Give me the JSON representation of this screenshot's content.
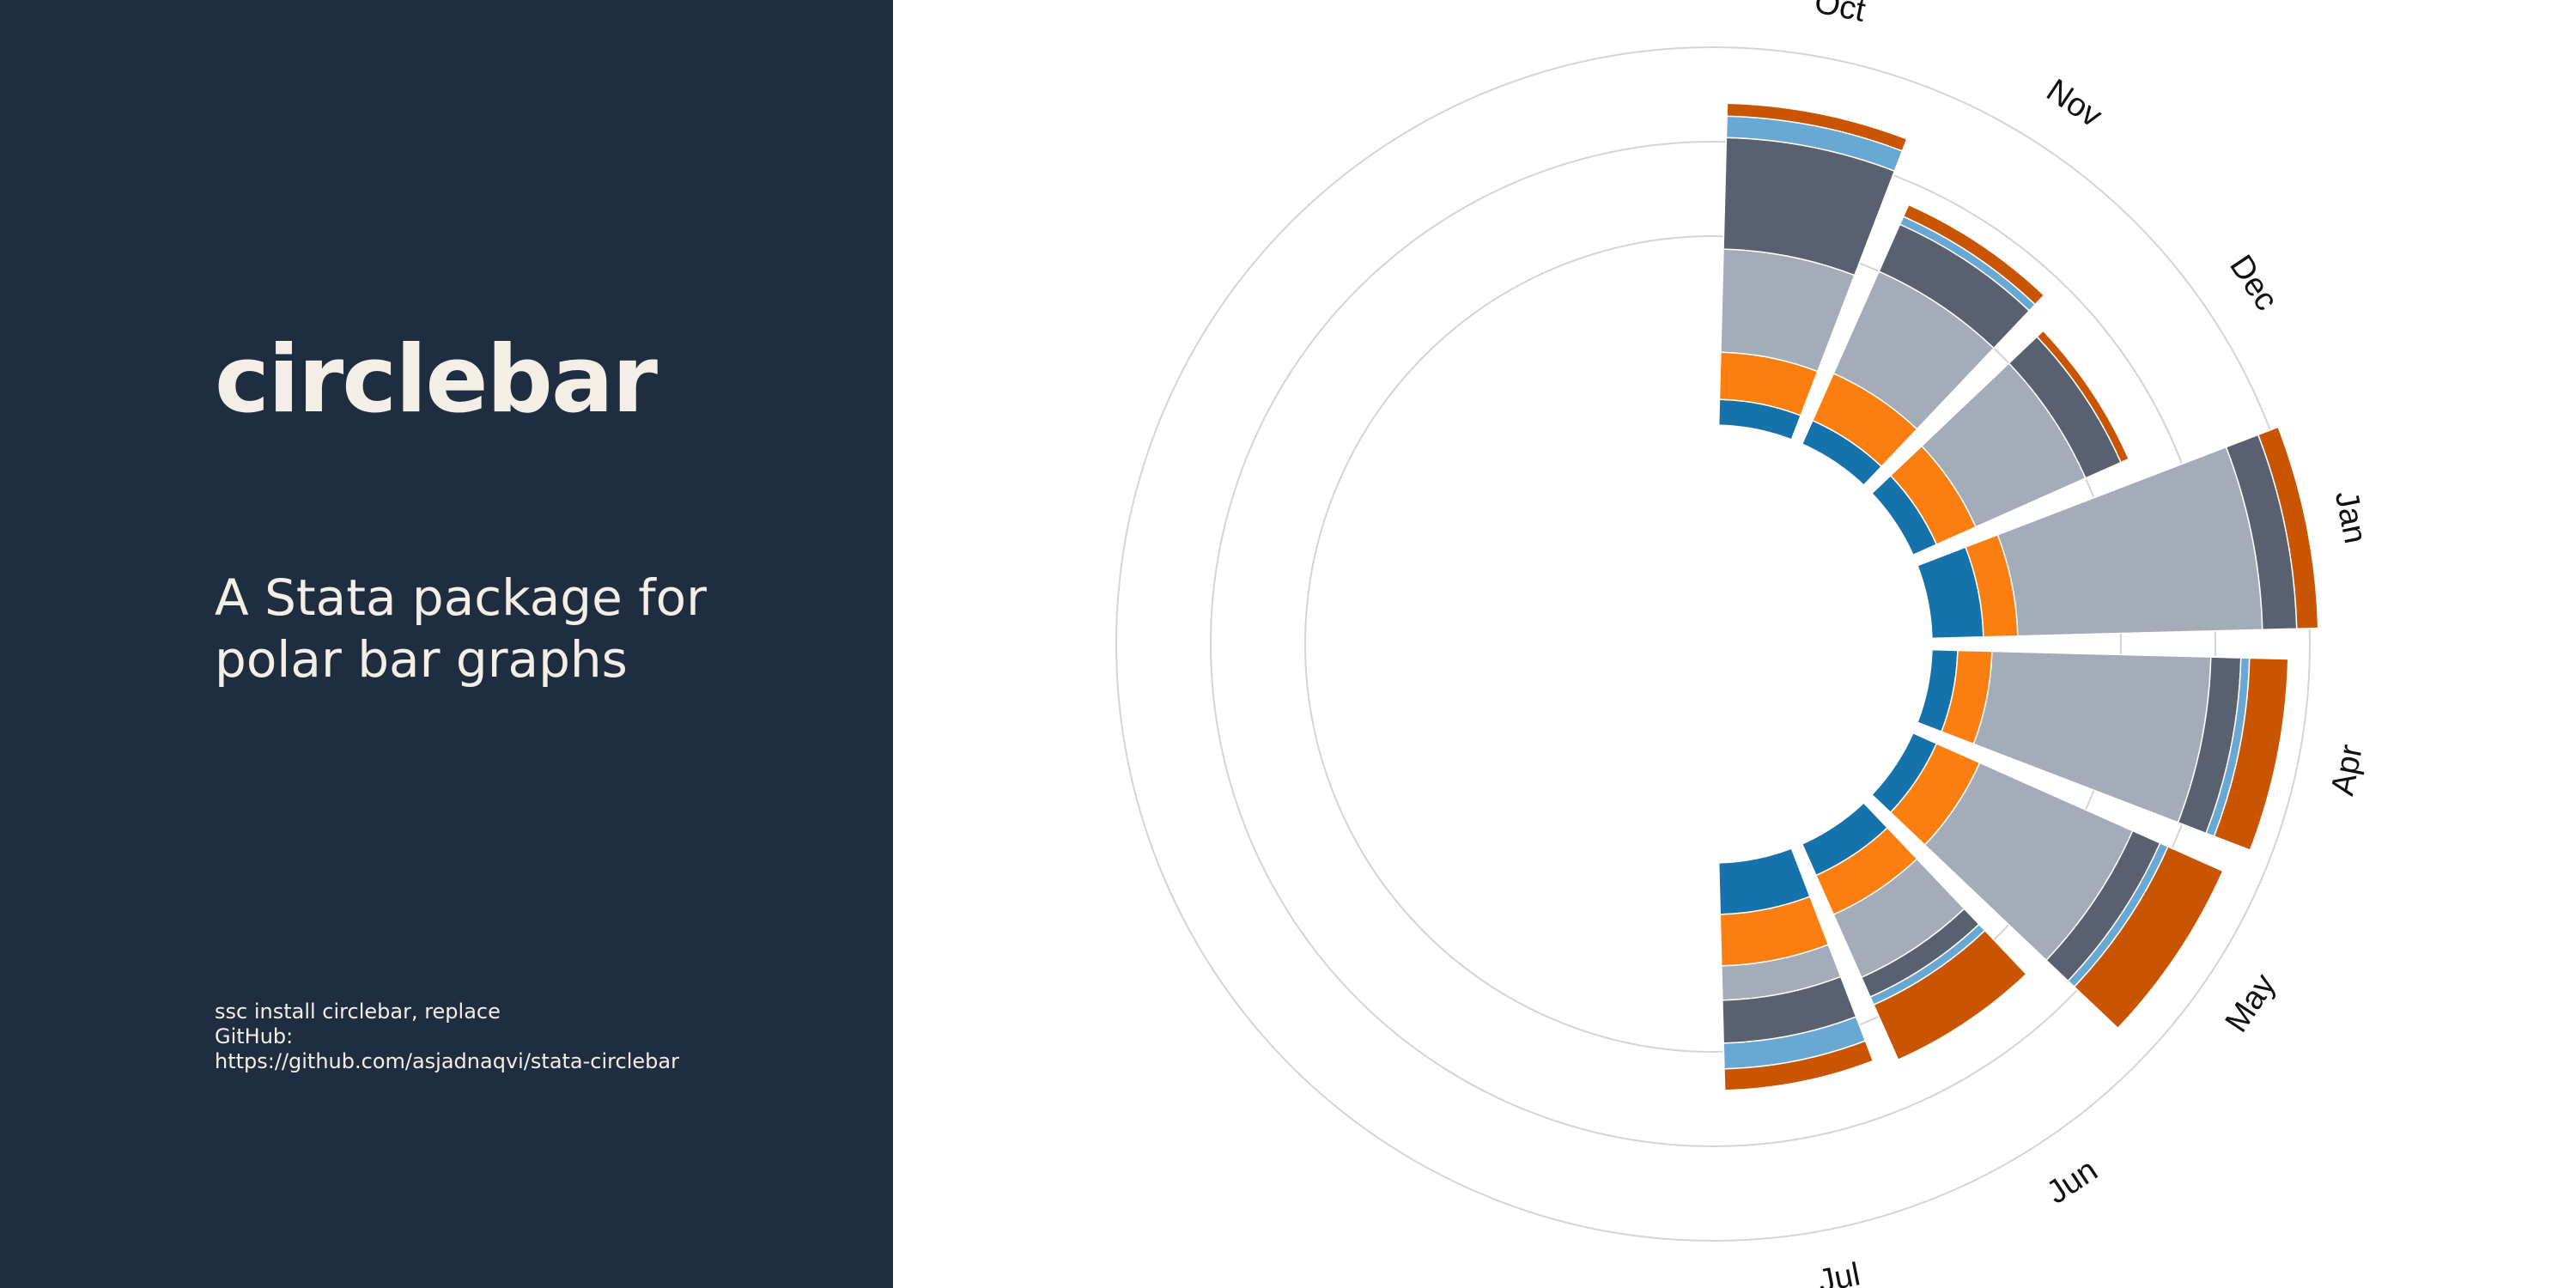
{
  "panel": {
    "title": "circlebar",
    "subtitle_line1": "A Stata package for",
    "subtitle_line2": "polar bar graphs",
    "install_line1": "ssc install circlebar, replace",
    "install_line2": "GitHub:",
    "install_line3": "https://github.com/asjadnaqvi/stata-circlebar"
  },
  "colors": {
    "panel_bg": "#1e2d40",
    "panel_text": "#f3efe6",
    "series": [
      "#1572aa",
      "#fb7f10",
      "#a3acb8",
      "#596170",
      "#6aa8d4",
      "#c95503"
    ],
    "grid": "#d5d5d5"
  },
  "chart_data": {
    "type": "bar",
    "layout": "polar-stacked",
    "categories": [
      "Oct",
      "Nov",
      "Dec",
      "Jan",
      "Apr",
      "May",
      "Jun",
      "Jul"
    ],
    "grid": true,
    "series": [
      {
        "values": [
          30,
          30,
          30,
          60,
          30,
          30,
          40,
          60
        ]
      },
      {
        "values": [
          55,
          60,
          50,
          40,
          40,
          55,
          50,
          60
        ]
      },
      {
        "values": [
          120,
          130,
          140,
          285,
          255,
          195,
          80,
          40
        ]
      },
      {
        "values": [
          130,
          60,
          45,
          40,
          35,
          35,
          25,
          50
        ]
      },
      {
        "values": [
          25,
          10,
          0,
          0,
          10,
          10,
          10,
          30
        ]
      },
      {
        "values": [
          15,
          15,
          10,
          25,
          45,
          70,
          70,
          25
        ]
      }
    ]
  }
}
